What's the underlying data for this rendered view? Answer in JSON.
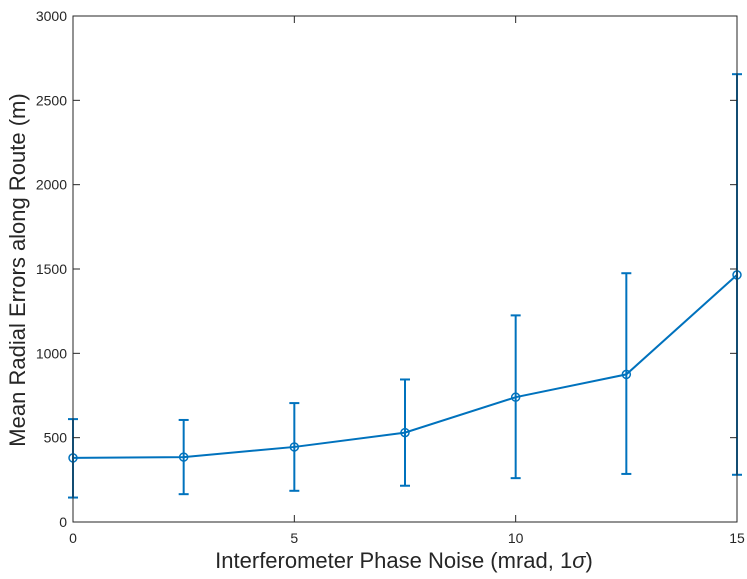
{
  "chart_data": {
    "type": "line",
    "xlabel": "Interferometer Phase Noise (mrad, 1σ)",
    "xlabel_main": "Interferometer Phase Noise (mrad, 1",
    "xlabel_sigma": "σ",
    "xlabel_end": ")",
    "ylabel": "Mean Radial Errors along Route (m)",
    "xlim": [
      0,
      15
    ],
    "ylim": [
      0,
      3000
    ],
    "x_ticks": [
      0,
      5,
      10,
      15
    ],
    "y_ticks": [
      0,
      500,
      1000,
      1500,
      2000,
      2500,
      3000
    ],
    "grid": false,
    "series_color": "#0072BD",
    "series": [
      {
        "x": [
          0,
          2.5,
          5,
          7.5,
          10,
          12.5,
          15
        ],
        "y": [
          380,
          385,
          445,
          530,
          740,
          875,
          1465
        ],
        "err_low": [
          145,
          165,
          185,
          215,
          260,
          285,
          280
        ],
        "err_high": [
          610,
          605,
          705,
          845,
          1225,
          1475,
          2655
        ]
      }
    ]
  }
}
